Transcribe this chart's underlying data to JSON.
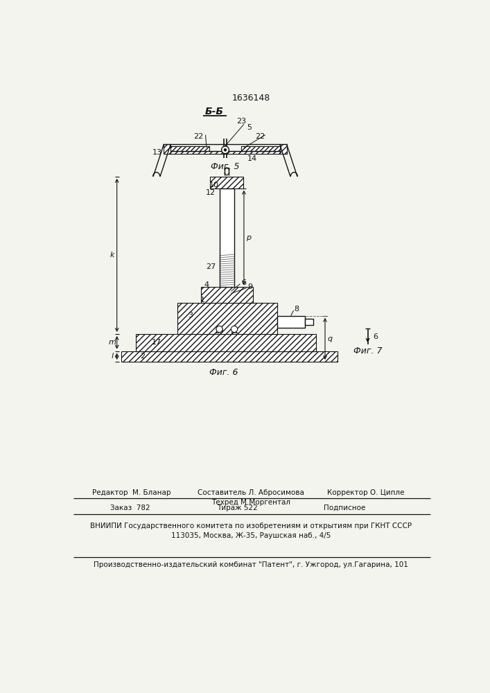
{
  "patent_number": "1636148",
  "bg_color": "#f4f4ef",
  "section_label": "Б-Б",
  "fig5_caption": "Фиг. 5",
  "fig6_caption": "Фиг. 6",
  "fig7_caption": "Фиг. 7",
  "footer_editor": "Редактор  М. Бланар",
  "footer_composer": "Составитель Л. Абросимова",
  "footer_corrector": "Корректор О. Ципле",
  "footer_techred": "Техред М.Моргентал",
  "footer_order": "Заказ  782",
  "footer_tirazh": "Тираж 522",
  "footer_podpisnoe": "Подписное",
  "footer_vniipи": "ВНИИПИ Государственного комитета по изобретениям и открытиям при ГКНТ СССР",
  "footer_address": "113035, Москва, Ж-35, Раушская наб., 4/5",
  "footer_publisher": "Производственно-издательский комбинат \"Патент\", г. Ужгород, ул.Гагарина, 101"
}
